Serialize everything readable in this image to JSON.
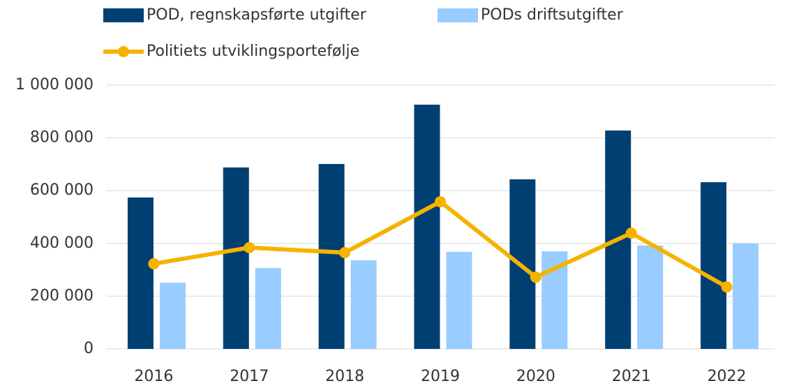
{
  "chart_data": {
    "type": "bar_line",
    "categories": [
      "2016",
      "2017",
      "2018",
      "2019",
      "2020",
      "2021",
      "2022"
    ],
    "series": [
      {
        "name": "POD, regnskapsførte utgifter",
        "type": "bar",
        "color": "#003f72",
        "values": [
          574000,
          688000,
          701000,
          926000,
          643000,
          828000,
          632000
        ]
      },
      {
        "name": "PODs driftsutgifter",
        "type": "bar",
        "color": "#99ccff",
        "values": [
          251000,
          307000,
          336000,
          368000,
          370000,
          392000,
          400000
        ]
      },
      {
        "name": "Politiets utviklingsportefølje",
        "type": "line",
        "color": "#f5b300",
        "values": [
          323000,
          384000,
          365000,
          558000,
          272000,
          439000,
          235000
        ]
      }
    ],
    "ylim": [
      0,
      1000000
    ],
    "yticks": [
      0,
      {
        "value": 200000,
        "label": "200 000"
      },
      {
        "value": 400000,
        "label": "400 000"
      },
      {
        "value": 600000,
        "label": "600 000"
      },
      {
        "value": 800000,
        "label": "800 000"
      },
      {
        "value": 1000000,
        "label": "1 000 000"
      }
    ],
    "grid": true
  }
}
